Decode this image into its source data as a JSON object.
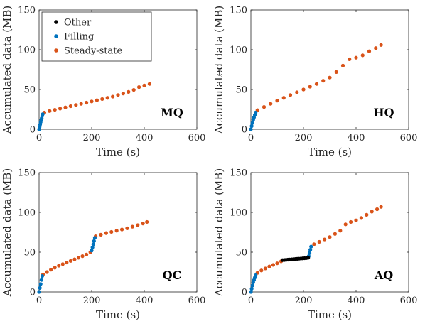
{
  "colors": {
    "Other": "#000000",
    "Filling": "#0072BD",
    "Steady-state": "#D95319",
    "axis": "#262626"
  },
  "chart_data": [
    {
      "type": "scatter",
      "label": "MQ",
      "xlabel": "Time (s)",
      "ylabel": "Accumulated data (MB)",
      "xlim": [
        0,
        600
      ],
      "ylim": [
        0,
        150
      ],
      "xticks": [
        0,
        200,
        400,
        600
      ],
      "yticks": [
        0,
        50,
        100,
        150
      ],
      "grid": false,
      "legend": {
        "placement": "top-left",
        "entries": [
          "Other",
          "Filling",
          "Steady-state"
        ]
      },
      "series": [
        {
          "name": "Filling",
          "x": [
            0,
            2,
            4,
            6,
            8,
            10,
            12,
            14
          ],
          "y": [
            0,
            3,
            6,
            9,
            12,
            14,
            17,
            19
          ]
        },
        {
          "name": "Steady-state",
          "x": [
            20,
            40,
            60,
            80,
            100,
            120,
            140,
            160,
            180,
            200,
            220,
            240,
            260,
            280,
            300,
            320,
            340,
            360,
            380,
            400,
            420
          ],
          "y": [
            21,
            23,
            24.5,
            26,
            27.5,
            29,
            30.5,
            32,
            33.5,
            35,
            36.5,
            38,
            39.5,
            41,
            43,
            45,
            47,
            49.5,
            53,
            55,
            57
          ]
        }
      ]
    },
    {
      "type": "scatter",
      "label": "HQ",
      "xlabel": "Time (s)",
      "ylabel": "Accumulated data (MB)",
      "xlim": [
        0,
        600
      ],
      "ylim": [
        0,
        150
      ],
      "xticks": [
        0,
        200,
        400,
        600
      ],
      "yticks": [
        0,
        50,
        100,
        150
      ],
      "grid": false,
      "series": [
        {
          "name": "Filling",
          "x": [
            0,
            3,
            6,
            9,
            12,
            15,
            18
          ],
          "y": [
            0,
            4,
            8,
            12,
            15,
            18,
            21
          ]
        },
        {
          "name": "Steady-state",
          "x": [
            25,
            50,
            75,
            100,
            125,
            150,
            175,
            200,
            225,
            250,
            275,
            300,
            325,
            350,
            375,
            400,
            425,
            450,
            475,
            495
          ],
          "y": [
            24,
            28,
            32,
            36,
            39.5,
            43,
            46.5,
            50,
            53.5,
            57,
            61,
            65,
            72,
            80,
            88,
            90,
            93,
            98,
            102,
            106
          ]
        }
      ]
    },
    {
      "type": "scatter",
      "label": "QC",
      "xlabel": "Time (s)",
      "ylabel": "Accumulated data (MB)",
      "xlim": [
        0,
        600
      ],
      "ylim": [
        0,
        150
      ],
      "xticks": [
        0,
        200,
        400,
        600
      ],
      "yticks": [
        0,
        50,
        100,
        150
      ],
      "grid": false,
      "series": [
        {
          "name": "Filling",
          "x": [
            0,
            3,
            6,
            9,
            12,
            200,
            203,
            206,
            209,
            212
          ],
          "y": [
            0,
            5,
            10,
            15,
            20,
            52,
            56,
            60,
            64,
            68
          ]
        },
        {
          "name": "Steady-state",
          "x": [
            15,
            30,
            45,
            60,
            75,
            90,
            105,
            120,
            135,
            150,
            165,
            180,
            195,
            215,
            235,
            255,
            275,
            295,
            315,
            335,
            355,
            375,
            395,
            410
          ],
          "y": [
            22,
            25,
            28,
            30.5,
            33,
            35,
            37,
            39,
            41,
            43,
            45,
            47,
            50,
            70,
            72,
            74,
            75.5,
            77,
            78.5,
            80,
            82,
            84,
            86,
            88
          ]
        }
      ]
    },
    {
      "type": "scatter",
      "label": "AQ",
      "xlabel": "Time (s)",
      "ylabel": "Accumulated data (MB)",
      "xlim": [
        0,
        600
      ],
      "ylim": [
        0,
        150
      ],
      "xticks": [
        0,
        200,
        400,
        600
      ],
      "yticks": [
        0,
        50,
        100,
        150
      ],
      "grid": false,
      "series": [
        {
          "name": "Other",
          "x": [
            120,
            127,
            134,
            141,
            148,
            155,
            162,
            169,
            176,
            183,
            190,
            197,
            204,
            211,
            218
          ],
          "y": [
            40,
            40.2,
            40.4,
            40.6,
            40.8,
            41,
            41.2,
            41.4,
            41.6,
            41.8,
            42,
            42.2,
            42.4,
            42.6,
            43
          ]
        },
        {
          "name": "Filling",
          "x": [
            0,
            3,
            6,
            9,
            12,
            15,
            18,
            220,
            223,
            226,
            229
          ],
          "y": [
            0,
            4,
            8,
            12,
            15,
            18,
            21,
            45,
            49,
            53,
            57
          ]
        },
        {
          "name": "Steady-state",
          "x": [
            25,
            40,
            55,
            70,
            85,
            100,
            115,
            240,
            260,
            280,
            300,
            320,
            340,
            360,
            380,
            400,
            420,
            440,
            460,
            480,
            495
          ],
          "y": [
            24,
            27,
            29.5,
            32,
            34,
            36,
            38.5,
            60,
            63,
            66,
            69,
            73,
            77,
            85,
            88,
            90,
            93,
            97,
            101,
            104,
            107
          ]
        }
      ]
    }
  ]
}
